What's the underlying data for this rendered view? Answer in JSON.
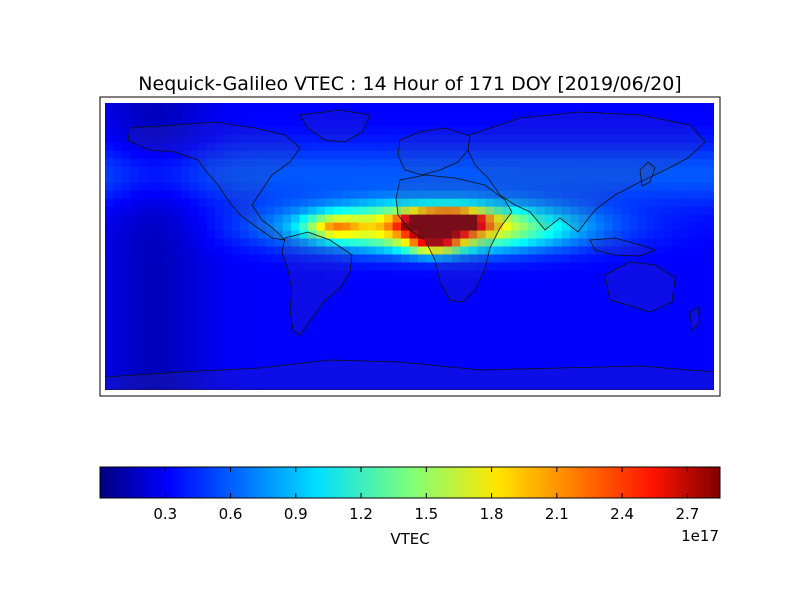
{
  "chart_data": {
    "type": "heatmap",
    "title": "Nequick-Galileo VTEC : 14 Hour of 171 DOY [2019/06/20]",
    "colorbar": {
      "label": "VTEC",
      "ticks": [
        0.3,
        0.6,
        0.9,
        1.2,
        1.5,
        1.8,
        2.1,
        2.4,
        2.7
      ],
      "tick_labels": [
        "0.3",
        "0.6",
        "0.9",
        "1.2",
        "1.5",
        "1.8",
        "2.1",
        "2.4",
        "2.7"
      ],
      "range": [
        0.0,
        2.85
      ],
      "scale_label": "1e17",
      "colormap": "jet",
      "orientation": "horizontal"
    },
    "map_extent": {
      "lon": [
        -180,
        180
      ],
      "lat": [
        -90,
        90
      ]
    },
    "hotspots": [
      {
        "lon": 10,
        "lat": 15,
        "value": 2.8
      },
      {
        "lon": 30,
        "lat": 16,
        "value": 2.7
      },
      {
        "lon": 15,
        "lat": 2,
        "value": 2.5
      },
      {
        "lon": -45,
        "lat": 12,
        "value": 1.8
      }
    ],
    "background_value": 0.35
  }
}
